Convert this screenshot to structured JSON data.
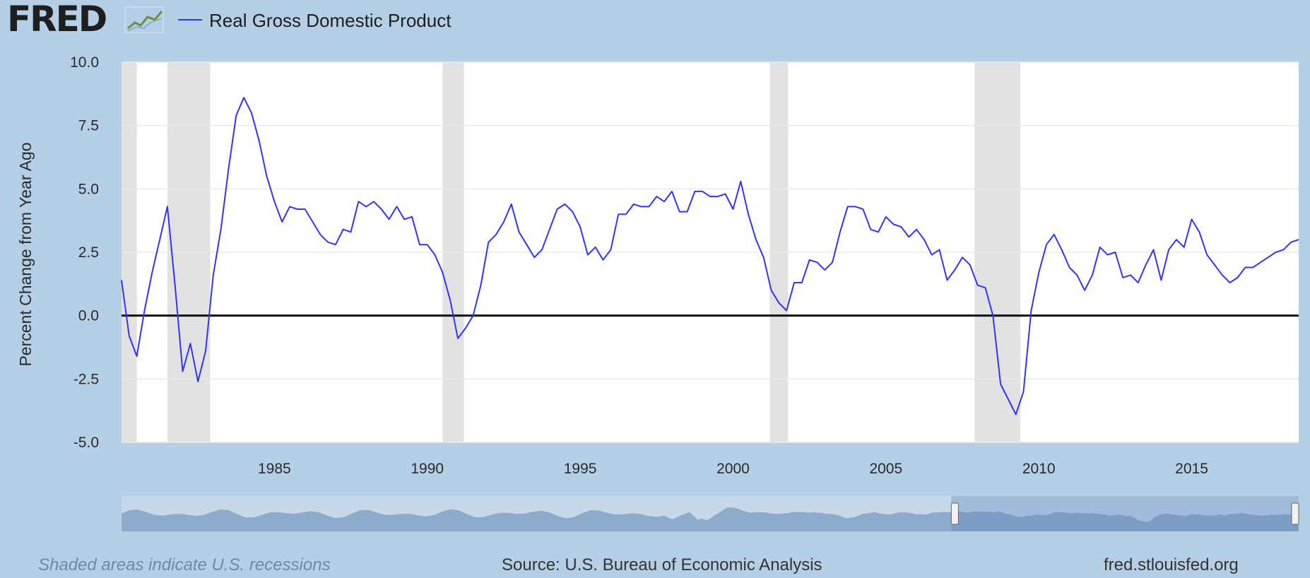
{
  "header": {
    "logo_text": "FRED",
    "logo_icon": "line-chart-icon",
    "series_label": "Real Gross Domestic Product",
    "series_color": "#3333ff"
  },
  "footer": {
    "recession_note": "Shaded areas indicate U.S. recessions",
    "source": "Source: U.S. Bureau of Economic Analysis",
    "url": "fred.stlouisfed.org"
  },
  "navigator": {
    "range_start": 1997.4,
    "range_end": 2018.5
  },
  "chart_data": {
    "type": "line",
    "title": "",
    "xlabel": "",
    "ylabel": "Percent Change from Year Ago",
    "xlim": [
      1980.0,
      2018.5
    ],
    "ylim": [
      -5.0,
      10.0
    ],
    "yticks": [
      "10.0",
      "7.5",
      "5.0",
      "2.5",
      "0.0",
      "-2.5",
      "-5.0"
    ],
    "ytick_values": [
      10,
      7.5,
      5,
      2.5,
      0,
      -2.5,
      -5
    ],
    "xticks": [
      "1985",
      "1990",
      "1995",
      "2000",
      "2005",
      "2010",
      "2015"
    ],
    "xtick_values": [
      1985,
      1990,
      1995,
      2000,
      2005,
      2010,
      2015
    ],
    "grid": true,
    "legend_position": "top-left",
    "zero_line": true,
    "recessions": [
      [
        1980.0,
        1980.5
      ],
      [
        1981.5,
        1982.9
      ],
      [
        1990.5,
        1991.2
      ],
      [
        2001.2,
        2001.8
      ],
      [
        2007.9,
        2009.4
      ]
    ],
    "series": [
      {
        "name": "Real Gross Domestic Product",
        "color": "#3333ff",
        "x": [
          1980.0,
          1980.25,
          1980.5,
          1980.75,
          1981.0,
          1981.25,
          1981.5,
          1981.75,
          1982.0,
          1982.25,
          1982.5,
          1982.75,
          1983.0,
          1983.25,
          1983.5,
          1983.75,
          1984.0,
          1984.25,
          1984.5,
          1984.75,
          1985.0,
          1985.25,
          1985.5,
          1985.75,
          1986.0,
          1986.25,
          1986.5,
          1986.75,
          1987.0,
          1987.25,
          1987.5,
          1987.75,
          1988.0,
          1988.25,
          1988.5,
          1988.75,
          1989.0,
          1989.25,
          1989.5,
          1989.75,
          1990.0,
          1990.25,
          1990.5,
          1990.75,
          1991.0,
          1991.25,
          1991.5,
          1991.75,
          1992.0,
          1992.25,
          1992.5,
          1992.75,
          1993.0,
          1993.25,
          1993.5,
          1993.75,
          1994.0,
          1994.25,
          1994.5,
          1994.75,
          1995.0,
          1995.25,
          1995.5,
          1995.75,
          1996.0,
          1996.25,
          1996.5,
          1996.75,
          1997.0,
          1997.25,
          1997.5,
          1997.75,
          1998.0,
          1998.25,
          1998.5,
          1998.75,
          1999.0,
          1999.25,
          1999.5,
          1999.75,
          2000.0,
          2000.25,
          2000.5,
          2000.75,
          2001.0,
          2001.25,
          2001.5,
          2001.75,
          2002.0,
          2002.25,
          2002.5,
          2002.75,
          2003.0,
          2003.25,
          2003.5,
          2003.75,
          2004.0,
          2004.25,
          2004.5,
          2004.75,
          2005.0,
          2005.25,
          2005.5,
          2005.75,
          2006.0,
          2006.25,
          2006.5,
          2006.75,
          2007.0,
          2007.25,
          2007.5,
          2007.75,
          2008.0,
          2008.25,
          2008.5,
          2008.75,
          2009.0,
          2009.25,
          2009.5,
          2009.75,
          2010.0,
          2010.25,
          2010.5,
          2010.75,
          2011.0,
          2011.25,
          2011.5,
          2011.75,
          2012.0,
          2012.25,
          2012.5,
          2012.75,
          2013.0,
          2013.25,
          2013.5,
          2013.75,
          2014.0,
          2014.25,
          2014.5,
          2014.75,
          2015.0,
          2015.25,
          2015.5,
          2015.75,
          2016.0,
          2016.25,
          2016.5,
          2016.75,
          2017.0,
          2017.25,
          2017.5,
          2017.75,
          2018.0,
          2018.25,
          2018.5
        ],
        "y": [
          1.4,
          -0.8,
          -1.6,
          0.2,
          1.7,
          3.0,
          4.3,
          1.2,
          -2.2,
          -1.1,
          -2.6,
          -1.4,
          1.6,
          3.4,
          5.8,
          7.9,
          8.6,
          8.0,
          6.9,
          5.5,
          4.5,
          3.7,
          4.3,
          4.2,
          4.2,
          3.7,
          3.2,
          2.9,
          2.8,
          3.4,
          3.3,
          4.5,
          4.3,
          4.5,
          4.2,
          3.8,
          4.3,
          3.8,
          3.9,
          2.8,
          2.8,
          2.4,
          1.7,
          0.6,
          -0.9,
          -0.5,
          0.0,
          1.2,
          2.9,
          3.2,
          3.7,
          4.4,
          3.3,
          2.8,
          2.3,
          2.6,
          3.4,
          4.2,
          4.4,
          4.1,
          3.5,
          2.4,
          2.7,
          2.2,
          2.6,
          4.0,
          4.0,
          4.4,
          4.3,
          4.3,
          4.7,
          4.5,
          4.9,
          4.1,
          4.1,
          4.9,
          4.9,
          4.7,
          4.7,
          4.8,
          4.2,
          5.3,
          4.0,
          3.0,
          2.3,
          1.0,
          0.5,
          0.2,
          1.3,
          1.3,
          2.2,
          2.1,
          1.8,
          2.1,
          3.3,
          4.3,
          4.3,
          4.2,
          3.4,
          3.3,
          3.9,
          3.6,
          3.5,
          3.1,
          3.4,
          3.0,
          2.4,
          2.6,
          1.4,
          1.8,
          2.3,
          2.0,
          1.2,
          1.1,
          0.0,
          -2.7,
          -3.3,
          -3.9,
          -3.0,
          0.2,
          1.7,
          2.8,
          3.2,
          2.6,
          1.9,
          1.6,
          1.0,
          1.6,
          2.7,
          2.4,
          2.5,
          1.5,
          1.6,
          1.3,
          2.0,
          2.6,
          1.4,
          2.6,
          3.0,
          2.7,
          3.8,
          3.3,
          2.4,
          2.0,
          1.6,
          1.3,
          1.5,
          1.9,
          1.9,
          2.1,
          2.3,
          2.5,
          2.6,
          2.9,
          3.0
        ]
      }
    ]
  }
}
